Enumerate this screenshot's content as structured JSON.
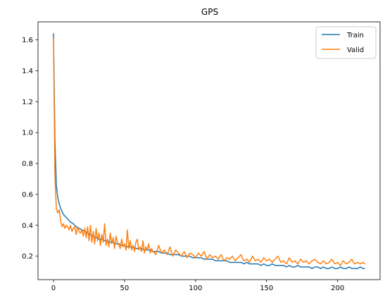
{
  "chart_data": {
    "type": "line",
    "title": "GPS",
    "xlabel": "",
    "ylabel": "",
    "xlim": [
      -10.9,
      229.9
    ],
    "ylim": [
      0.048,
      1.717
    ],
    "xticks": [
      0,
      50,
      100,
      150,
      200
    ],
    "yticks": [
      0.2,
      0.4,
      0.6,
      0.8,
      1.0,
      1.2,
      1.4,
      1.6
    ],
    "grid": false,
    "legend_position": "top-right",
    "series": [
      {
        "name": "Train",
        "color": "#1f77b4",
        "x": [
          0,
          1,
          2,
          3,
          4,
          5,
          6,
          7,
          8,
          9,
          10,
          12,
          14,
          16,
          18,
          20,
          22,
          24,
          26,
          28,
          30,
          32,
          34,
          36,
          38,
          40,
          42,
          44,
          46,
          48,
          50,
          52,
          54,
          56,
          58,
          60,
          62,
          64,
          66,
          68,
          70,
          72,
          74,
          76,
          78,
          80,
          82,
          84,
          86,
          88,
          90,
          92,
          94,
          96,
          98,
          100,
          102,
          104,
          106,
          108,
          110,
          112,
          114,
          116,
          118,
          120,
          122,
          124,
          126,
          128,
          130,
          132,
          134,
          136,
          138,
          140,
          142,
          144,
          146,
          148,
          150,
          152,
          154,
          156,
          158,
          160,
          162,
          164,
          166,
          168,
          170,
          172,
          174,
          176,
          178,
          180,
          182,
          184,
          186,
          188,
          190,
          192,
          194,
          196,
          198,
          200,
          202,
          204,
          206,
          208,
          210,
          212,
          214,
          216,
          218,
          219
        ],
        "y": [
          1.64,
          0.95,
          0.66,
          0.58,
          0.54,
          0.51,
          0.49,
          0.47,
          0.46,
          0.45,
          0.44,
          0.42,
          0.41,
          0.39,
          0.38,
          0.37,
          0.36,
          0.35,
          0.34,
          0.33,
          0.32,
          0.31,
          0.31,
          0.3,
          0.3,
          0.29,
          0.29,
          0.28,
          0.28,
          0.27,
          0.27,
          0.26,
          0.26,
          0.26,
          0.25,
          0.25,
          0.25,
          0.24,
          0.24,
          0.24,
          0.23,
          0.23,
          0.23,
          0.22,
          0.22,
          0.22,
          0.21,
          0.21,
          0.21,
          0.21,
          0.2,
          0.2,
          0.2,
          0.2,
          0.19,
          0.19,
          0.19,
          0.19,
          0.18,
          0.18,
          0.18,
          0.18,
          0.17,
          0.17,
          0.17,
          0.17,
          0.17,
          0.16,
          0.16,
          0.16,
          0.16,
          0.16,
          0.15,
          0.16,
          0.15,
          0.15,
          0.15,
          0.15,
          0.14,
          0.15,
          0.14,
          0.14,
          0.15,
          0.14,
          0.14,
          0.14,
          0.14,
          0.13,
          0.14,
          0.13,
          0.13,
          0.14,
          0.13,
          0.13,
          0.13,
          0.13,
          0.12,
          0.13,
          0.13,
          0.12,
          0.13,
          0.12,
          0.12,
          0.13,
          0.12,
          0.12,
          0.13,
          0.12,
          0.12,
          0.13,
          0.12,
          0.12,
          0.12,
          0.13,
          0.12,
          0.12
        ]
      },
      {
        "name": "Valid",
        "color": "#ff7f0e",
        "x": [
          0,
          1,
          2,
          3,
          4,
          5,
          6,
          7,
          8,
          9,
          10,
          11,
          12,
          13,
          14,
          15,
          16,
          17,
          18,
          19,
          20,
          21,
          22,
          23,
          24,
          25,
          26,
          27,
          28,
          29,
          30,
          31,
          32,
          33,
          34,
          35,
          36,
          37,
          38,
          39,
          40,
          41,
          42,
          43,
          44,
          45,
          46,
          47,
          48,
          49,
          50,
          51,
          52,
          53,
          54,
          55,
          56,
          57,
          58,
          59,
          60,
          61,
          62,
          63,
          64,
          65,
          66,
          67,
          68,
          69,
          70,
          72,
          74,
          76,
          78,
          80,
          82,
          84,
          86,
          88,
          90,
          92,
          94,
          96,
          98,
          100,
          102,
          104,
          106,
          108,
          110,
          112,
          114,
          116,
          118,
          120,
          122,
          124,
          126,
          128,
          130,
          132,
          134,
          136,
          138,
          140,
          142,
          144,
          146,
          148,
          150,
          152,
          154,
          156,
          158,
          160,
          162,
          164,
          166,
          168,
          170,
          172,
          174,
          176,
          178,
          180,
          182,
          184,
          186,
          188,
          190,
          192,
          194,
          196,
          198,
          200,
          202,
          204,
          206,
          208,
          210,
          212,
          214,
          216,
          218,
          219
        ],
        "y": [
          1.61,
          0.72,
          0.51,
          0.48,
          0.5,
          0.43,
          0.39,
          0.41,
          0.38,
          0.4,
          0.39,
          0.37,
          0.4,
          0.36,
          0.38,
          0.39,
          0.34,
          0.39,
          0.36,
          0.35,
          0.37,
          0.33,
          0.38,
          0.32,
          0.39,
          0.3,
          0.4,
          0.29,
          0.36,
          0.28,
          0.38,
          0.3,
          0.35,
          0.27,
          0.34,
          0.29,
          0.41,
          0.27,
          0.31,
          0.26,
          0.35,
          0.28,
          0.32,
          0.25,
          0.33,
          0.29,
          0.27,
          0.25,
          0.31,
          0.26,
          0.28,
          0.24,
          0.37,
          0.25,
          0.3,
          0.24,
          0.27,
          0.23,
          0.29,
          0.31,
          0.24,
          0.26,
          0.23,
          0.3,
          0.22,
          0.26,
          0.24,
          0.28,
          0.22,
          0.25,
          0.23,
          0.21,
          0.27,
          0.22,
          0.24,
          0.21,
          0.26,
          0.2,
          0.24,
          0.22,
          0.2,
          0.23,
          0.19,
          0.22,
          0.21,
          0.19,
          0.22,
          0.2,
          0.23,
          0.18,
          0.21,
          0.19,
          0.2,
          0.18,
          0.21,
          0.17,
          0.19,
          0.18,
          0.2,
          0.17,
          0.19,
          0.21,
          0.17,
          0.18,
          0.16,
          0.2,
          0.17,
          0.18,
          0.16,
          0.19,
          0.17,
          0.18,
          0.16,
          0.18,
          0.2,
          0.16,
          0.17,
          0.15,
          0.19,
          0.16,
          0.17,
          0.15,
          0.18,
          0.16,
          0.17,
          0.15,
          0.17,
          0.18,
          0.16,
          0.15,
          0.17,
          0.15,
          0.16,
          0.18,
          0.15,
          0.16,
          0.14,
          0.17,
          0.15,
          0.16,
          0.18,
          0.15,
          0.16,
          0.15,
          0.16,
          0.15
        ]
      }
    ]
  }
}
